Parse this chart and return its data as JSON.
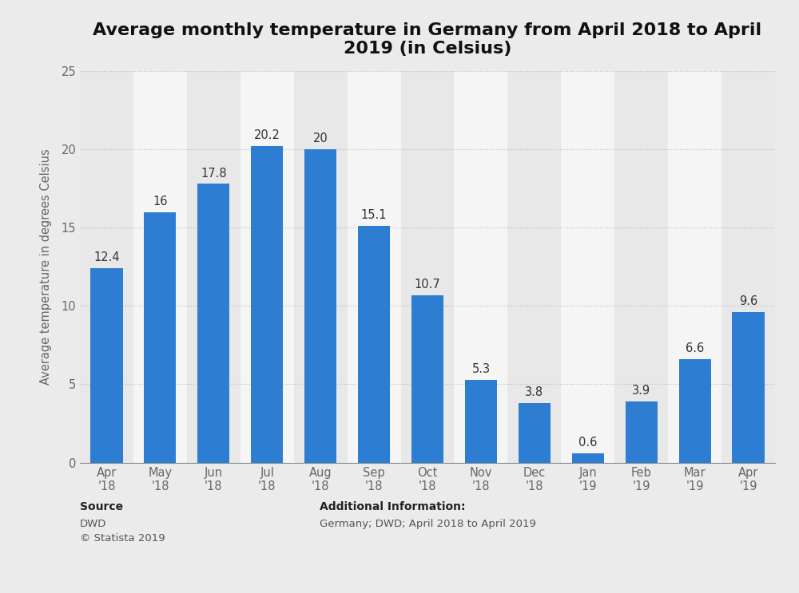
{
  "title": "Average monthly temperature in Germany from April 2018 to April\n2019 (in Celsius)",
  "categories": [
    "Apr\n'18",
    "May\n'18",
    "Jun\n'18",
    "Jul\n'18",
    "Aug\n'18",
    "Sep\n'18",
    "Oct\n'18",
    "Nov\n'18",
    "Dec\n'18",
    "Jan\n'19",
    "Feb\n'19",
    "Mar\n'19",
    "Apr\n'19"
  ],
  "values": [
    12.4,
    16.0,
    17.8,
    20.2,
    20.0,
    15.1,
    10.7,
    5.3,
    3.8,
    0.6,
    3.9,
    6.6,
    9.6
  ],
  "value_labels": [
    "12.4",
    "16",
    "17.8",
    "20.2",
    "20",
    "15.1",
    "10.7",
    "5.3",
    "3.8",
    "0.6",
    "3.9",
    "6.6",
    "9.6"
  ],
  "bar_color": "#2d7dd2",
  "ylabel": "Average temperature in degrees Celsius",
  "ylim": [
    0,
    25
  ],
  "yticks": [
    0,
    5,
    10,
    15,
    20,
    25
  ],
  "title_fontsize": 16,
  "label_fontsize": 10.5,
  "tick_fontsize": 10.5,
  "value_fontsize": 10.5,
  "background_color": "#ebebeb",
  "plot_bg_color": "#ffffff",
  "col_bg_even": "#e8e8e8",
  "col_bg_odd": "#f5f5f5",
  "source_label": "Source",
  "source_body": "DWD\n© Statista 2019",
  "additional_label": "Additional Information:",
  "additional_body": "Germany; DWD; April 2018 to April 2019"
}
